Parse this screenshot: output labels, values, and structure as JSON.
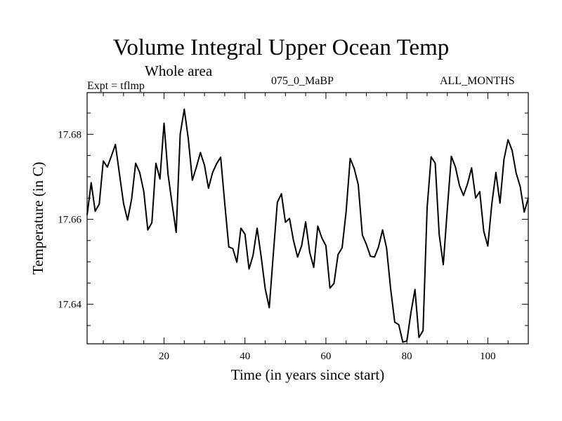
{
  "header": {
    "title": "Volume Integral Upper Ocean Temp",
    "subtitle": "Whole area",
    "experiment": "Expt = tflmp",
    "run_id": "075_0_MaBP",
    "months": "ALL_MONTHS"
  },
  "chart_data": {
    "type": "line",
    "title": "Volume Integral Upper Ocean Temp",
    "subtitle": "Whole area",
    "xlabel": "Time (in years since start)",
    "ylabel": "Temperature (in C)",
    "xlim": [
      1,
      110
    ],
    "ylim": [
      17.6307,
      17.6898
    ],
    "xticks": [
      20,
      40,
      60,
      80,
      100
    ],
    "yticks": [
      17.64,
      17.66,
      17.68
    ],
    "ytick_labels": [
      "17.64",
      "17.66",
      "17.68"
    ],
    "grid": false,
    "series": [
      {
        "name": "Temperature",
        "color": "#000000",
        "x": [
          1,
          2,
          3,
          4,
          5,
          6,
          7,
          8,
          9,
          10,
          11,
          12,
          13,
          14,
          15,
          16,
          17,
          18,
          19,
          20,
          21,
          22,
          23,
          24,
          25,
          26,
          27,
          28,
          29,
          30,
          31,
          32,
          33,
          34,
          35,
          36,
          37,
          38,
          39,
          40,
          41,
          42,
          43,
          44,
          45,
          46,
          47,
          48,
          49,
          50,
          51,
          52,
          53,
          54,
          55,
          56,
          57,
          58,
          59,
          60,
          61,
          62,
          63,
          64,
          65,
          66,
          67,
          68,
          69,
          70,
          71,
          72,
          73,
          74,
          75,
          76,
          77,
          78,
          79,
          80,
          81,
          82,
          83,
          84,
          85,
          86,
          87,
          88,
          89,
          90,
          91,
          92,
          93,
          94,
          95,
          96,
          97,
          98,
          99,
          100,
          101,
          102,
          103,
          104,
          105,
          106,
          107,
          108,
          109,
          110
        ],
        "values": [
          17.661,
          17.6686,
          17.6619,
          17.6636,
          17.6737,
          17.6723,
          17.6749,
          17.6776,
          17.6706,
          17.6637,
          17.6598,
          17.6648,
          17.6732,
          17.671,
          17.6665,
          17.6575,
          17.6592,
          17.6732,
          17.6695,
          17.6826,
          17.6706,
          17.6636,
          17.6569,
          17.68,
          17.6859,
          17.679,
          17.6692,
          17.6723,
          17.6757,
          17.6727,
          17.6673,
          17.671,
          17.6731,
          17.6746,
          17.6638,
          17.6535,
          17.6531,
          17.6499,
          17.6579,
          17.6565,
          17.6483,
          17.6515,
          17.6579,
          17.6513,
          17.6437,
          17.6392,
          17.6517,
          17.664,
          17.666,
          17.6593,
          17.6602,
          17.655,
          17.6511,
          17.6538,
          17.6594,
          17.6522,
          17.6487,
          17.6584,
          17.6556,
          17.6538,
          17.6438,
          17.6449,
          17.6517,
          17.6533,
          17.6618,
          17.6743,
          17.6719,
          17.6681,
          17.6563,
          17.6541,
          17.6513,
          17.6511,
          17.6535,
          17.6575,
          17.6532,
          17.6436,
          17.6358,
          17.6352,
          17.6311,
          17.6314,
          17.638,
          17.6435,
          17.6322,
          17.6338,
          17.6627,
          17.6747,
          17.6732,
          17.6564,
          17.6493,
          17.6625,
          17.6748,
          17.6723,
          17.6679,
          17.6656,
          17.6684,
          17.6721,
          17.665,
          17.6665,
          17.6572,
          17.6537,
          17.6636,
          17.671,
          17.6638,
          17.6741,
          17.6787,
          17.6762,
          17.6709,
          17.6677,
          17.6617,
          17.665
        ]
      }
    ]
  }
}
